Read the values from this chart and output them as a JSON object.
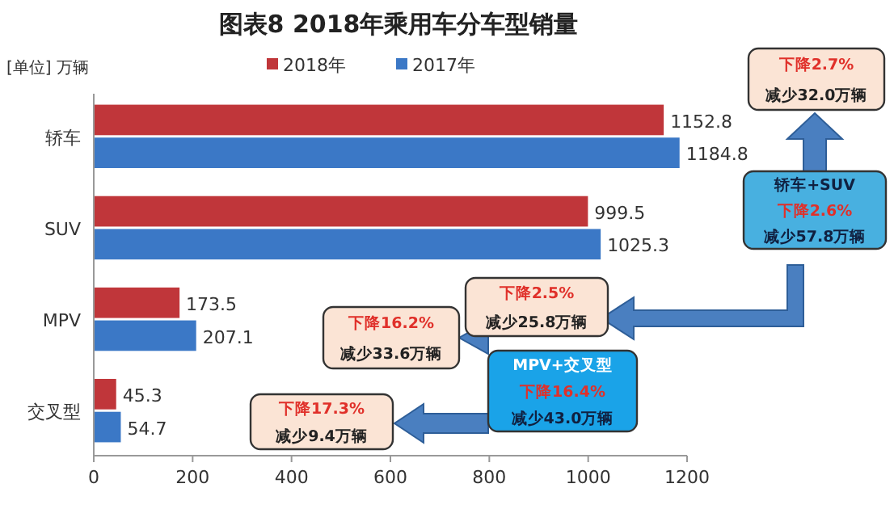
{
  "chart_data": {
    "type": "bar",
    "orientation": "horizontal",
    "title": "图表8    2018年乘用车分车型销量",
    "ylabel": "[单位] 万辆",
    "categories": [
      "轿车",
      "SUV",
      "MPV",
      "交叉型"
    ],
    "series": [
      {
        "name": "2018年",
        "color": "#c0363a",
        "values": [
          1152.8,
          999.5,
          173.5,
          45.3
        ]
      },
      {
        "name": "2017年",
        "color": "#3b78c6",
        "values": [
          1184.8,
          1025.3,
          207.1,
          54.7
        ]
      }
    ],
    "xlim": [
      0,
      1200
    ],
    "xticks": [
      0,
      200,
      400,
      600,
      800,
      1000,
      1200
    ],
    "data_labels": true,
    "legend": "top",
    "annotations": [
      "下降2.7%",
      "减少32.0万辆",
      "轿车+SUV",
      "下降2.6%",
      "减少57.8万辆",
      "下降2.5%",
      "减少25.8万辆",
      "下降16.2%",
      "减少33.6万辆",
      "MPV+交叉型",
      "下降16.4%",
      "减少43.0万辆",
      "下降17.3%",
      "减少9.4万辆"
    ]
  }
}
